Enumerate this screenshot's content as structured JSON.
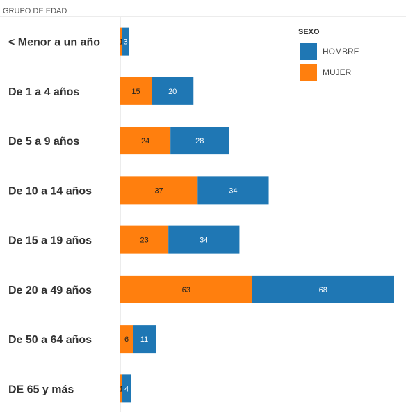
{
  "chart_data": {
    "type": "bar",
    "orientation": "horizontal",
    "stacked": true,
    "row_header": "GRUPO DE EDAD",
    "categories": [
      "< Menor a un año",
      "De 1 a 4 años",
      "De 5 a 9 años",
      "De 10 a 14 años",
      "De 15 a 19 años",
      "De 20 a 49 años",
      "De 50 a 64 años",
      "DE 65 y más"
    ],
    "series": [
      {
        "name": "MUJER",
        "color": "#ff7f0e",
        "values": [
          1,
          15,
          24,
          37,
          23,
          63,
          6,
          1
        ],
        "label_color": "#222222"
      },
      {
        "name": "HOMBRE",
        "color": "#1f77b4",
        "values": [
          3,
          20,
          28,
          34,
          34,
          68,
          11,
          4
        ],
        "label_color": "#ffffff"
      }
    ],
    "legend": {
      "title": "SEXO",
      "position": "top-right",
      "items": [
        {
          "name": "HOMBRE",
          "color": "#1f77b4"
        },
        {
          "name": "MUJER",
          "color": "#ff7f0e"
        }
      ]
    },
    "xlim": [
      0,
      132
    ],
    "grid": false
  }
}
